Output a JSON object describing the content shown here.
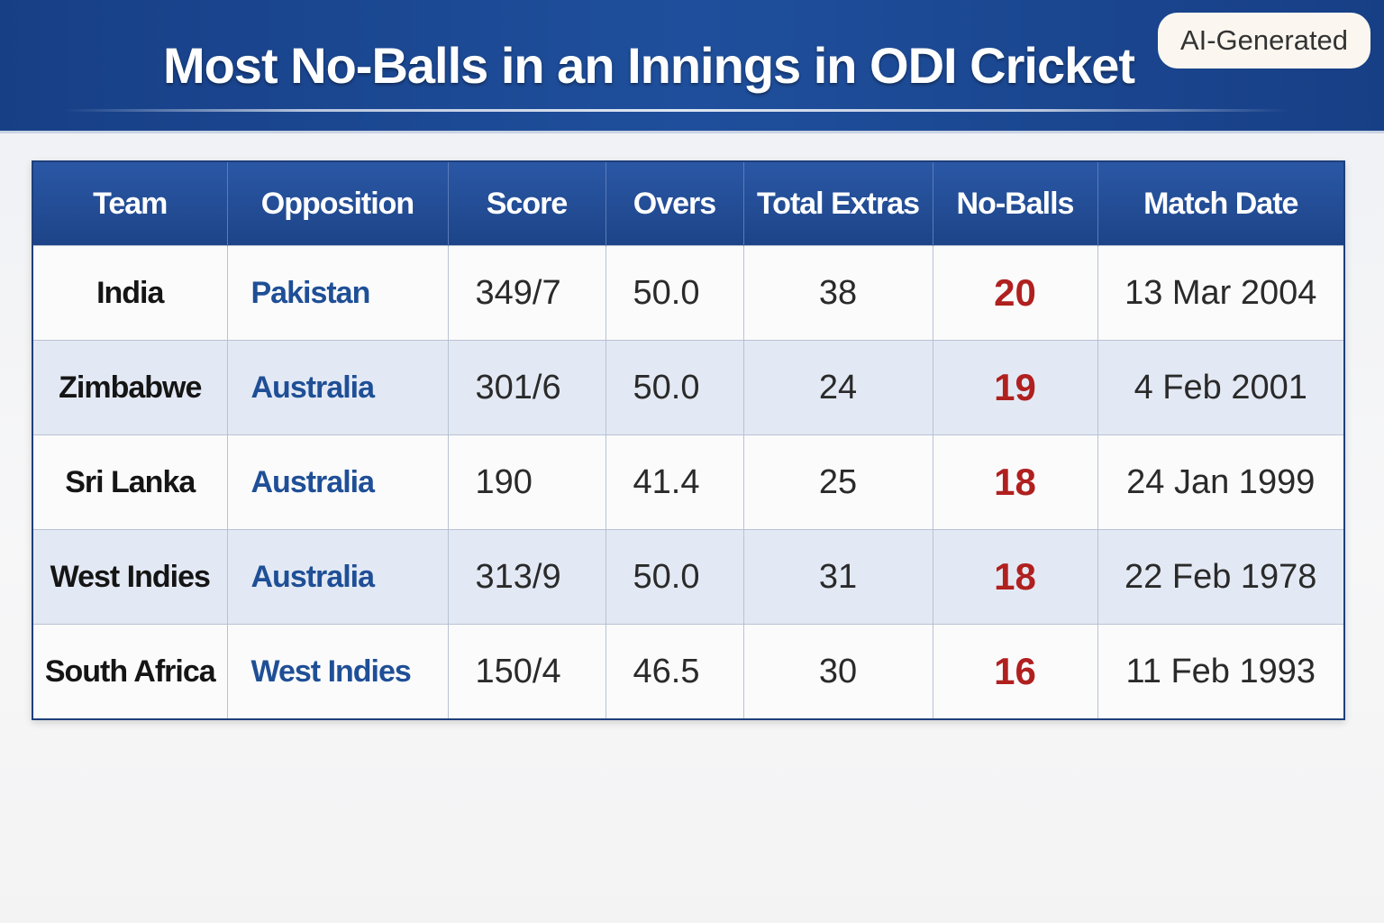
{
  "header": {
    "title": "Most No-Balls in an Innings in ODI Cricket",
    "badge": "AI-Generated"
  },
  "table": {
    "columns": [
      "Team",
      "Opposition",
      "Score",
      "Overs",
      "Total Extras",
      "No-Balls",
      "Match Date"
    ],
    "rows": [
      [
        "India",
        "Pakistan",
        "349/7",
        "50.0",
        38,
        20,
        "13 Mar 2004"
      ],
      [
        "Zimbabwe",
        "Australia",
        "301/6",
        "50.0",
        24,
        19,
        "4 Feb 2001"
      ],
      [
        "Sri Lanka",
        "Australia",
        "190",
        "41.4",
        25,
        18,
        "24 Jan 1999"
      ],
      [
        "West Indies",
        "Australia",
        "313/9",
        "50.0",
        31,
        18,
        "22 Feb 1978"
      ],
      [
        "South Africa",
        "West Indies",
        "150/4",
        "46.5",
        30,
        16,
        "11 Feb 1993"
      ]
    ]
  }
}
